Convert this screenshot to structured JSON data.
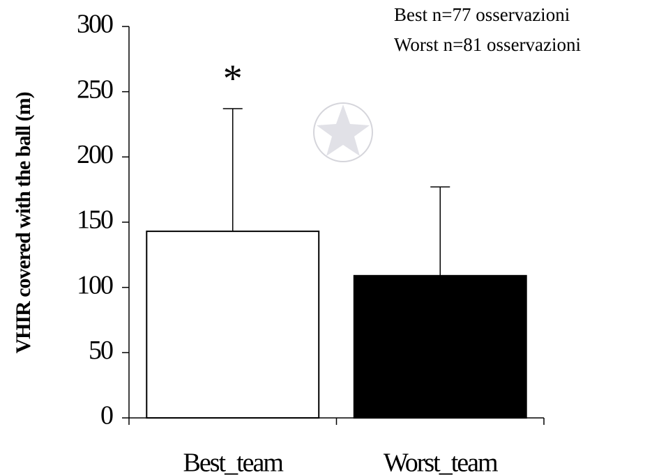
{
  "chart_data": {
    "type": "bar",
    "ylabel": "VHIR covered with the ball (m)",
    "categories": [
      "Best_team",
      "Worst_team"
    ],
    "values": [
      143,
      109
    ],
    "errors": [
      94,
      68
    ],
    "colors": [
      "#ffffff",
      "#000000"
    ],
    "ylim": [
      0,
      300
    ],
    "yticks": [
      0,
      50,
      100,
      150,
      200,
      250,
      300
    ],
    "significance_marker": "*",
    "notes": [
      "Best n=77 osservazioni",
      "Worst n=81 osservazioni"
    ]
  }
}
